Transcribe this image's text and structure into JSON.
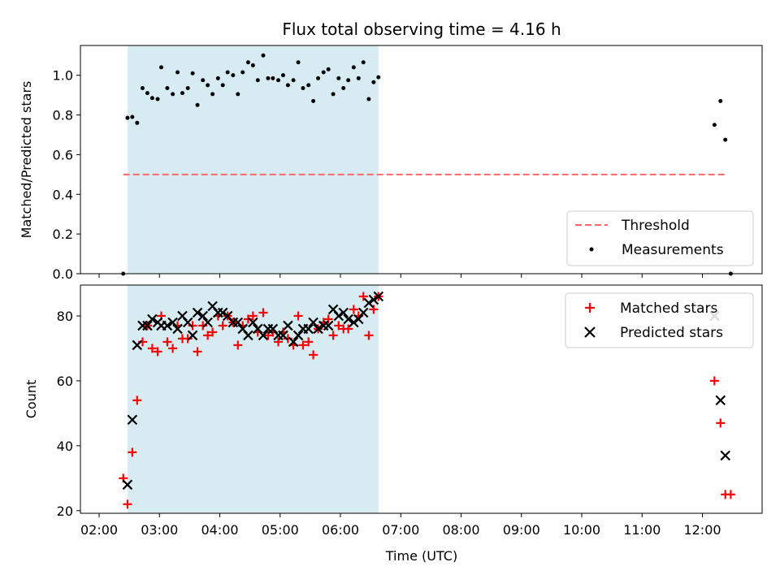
{
  "title": "Flux total observing time = 4.16 h",
  "xlabel": "Time (UTC)",
  "x_ticks": [
    "02:00",
    "03:00",
    "04:00",
    "05:00",
    "06:00",
    "07:00",
    "08:00",
    "09:00",
    "10:00",
    "11:00",
    "12:00"
  ],
  "x_range_hours": [
    1.69,
    12.99
  ],
  "observing_window_hours": [
    2.47,
    6.63
  ],
  "colors": {
    "shade": "#add8e6",
    "threshold": "#ff6666",
    "matched": "#ff0000",
    "predicted": "#000000",
    "measurement": "#000000"
  },
  "chart_data": [
    {
      "type": "scatter",
      "ylabel": "Matched/Predicted stars",
      "ylim": [
        0,
        1.15
      ],
      "y_ticks": [
        "0.0",
        "0.2",
        "0.4",
        "0.6",
        "0.8",
        "1.0"
      ],
      "grid": false,
      "legend_position": "lower-right",
      "legend": [
        "Threshold",
        "Measurements"
      ],
      "threshold": {
        "value": 0.5,
        "x_start": 2.4,
        "x_end": 12.4
      },
      "series": [
        {
          "name": "Measurements",
          "points": [
            [
              2.4,
              0.0
            ],
            [
              2.47,
              0.785
            ],
            [
              2.55,
              0.79
            ],
            [
              2.63,
              0.76
            ],
            [
              2.72,
              0.935
            ],
            [
              2.8,
              0.91
            ],
            [
              2.88,
              0.885
            ],
            [
              2.97,
              0.88
            ],
            [
              3.03,
              1.04
            ],
            [
              3.13,
              0.935
            ],
            [
              3.22,
              0.905
            ],
            [
              3.3,
              1.015
            ],
            [
              3.38,
              0.91
            ],
            [
              3.47,
              0.935
            ],
            [
              3.55,
              1.01
            ],
            [
              3.63,
              0.85
            ],
            [
              3.72,
              0.975
            ],
            [
              3.8,
              0.95
            ],
            [
              3.88,
              0.905
            ],
            [
              3.97,
              0.985
            ],
            [
              4.05,
              0.95
            ],
            [
              4.13,
              1.015
            ],
            [
              4.22,
              1.0
            ],
            [
              4.3,
              0.905
            ],
            [
              4.38,
              1.015
            ],
            [
              4.47,
              1.065
            ],
            [
              4.55,
              1.05
            ],
            [
              4.63,
              0.975
            ],
            [
              4.72,
              1.1
            ],
            [
              4.8,
              0.985
            ],
            [
              4.88,
              0.985
            ],
            [
              4.97,
              0.975
            ],
            [
              5.05,
              1.0
            ],
            [
              5.13,
              0.95
            ],
            [
              5.22,
              0.975
            ],
            [
              5.3,
              1.065
            ],
            [
              5.38,
              0.935
            ],
            [
              5.47,
              0.95
            ],
            [
              5.55,
              0.87
            ],
            [
              5.63,
              0.985
            ],
            [
              5.72,
              1.015
            ],
            [
              5.8,
              1.03
            ],
            [
              5.88,
              0.905
            ],
            [
              5.97,
              0.985
            ],
            [
              6.05,
              0.935
            ],
            [
              6.13,
              0.975
            ],
            [
              6.22,
              1.04
            ],
            [
              6.3,
              0.985
            ],
            [
              6.38,
              1.065
            ],
            [
              6.47,
              0.88
            ],
            [
              6.55,
              0.965
            ],
            [
              6.63,
              0.99
            ],
            [
              12.2,
              0.75
            ],
            [
              12.3,
              0.87
            ],
            [
              12.38,
              0.675
            ],
            [
              12.47,
              0.0
            ]
          ]
        }
      ]
    },
    {
      "type": "scatter",
      "ylabel": "Count",
      "ylim": [
        19.2,
        89.5
      ],
      "y_ticks": [
        "20",
        "40",
        "60",
        "80"
      ],
      "grid": false,
      "legend_position": "upper-right",
      "legend": [
        "Matched stars",
        "Predicted stars"
      ],
      "series": [
        {
          "name": "Matched stars",
          "points": [
            [
              2.4,
              30
            ],
            [
              2.47,
              22
            ],
            [
              2.55,
              38
            ],
            [
              2.63,
              54
            ],
            [
              2.72,
              72
            ],
            [
              2.8,
              77
            ],
            [
              2.88,
              70
            ],
            [
              2.97,
              69
            ],
            [
              3.03,
              80
            ],
            [
              3.13,
              72
            ],
            [
              3.22,
              70
            ],
            [
              3.3,
              77
            ],
            [
              3.38,
              73
            ],
            [
              3.47,
              73
            ],
            [
              3.55,
              77
            ],
            [
              3.63,
              69
            ],
            [
              3.72,
              77
            ],
            [
              3.8,
              74
            ],
            [
              3.88,
              75
            ],
            [
              3.97,
              80
            ],
            [
              4.05,
              77
            ],
            [
              4.13,
              80
            ],
            [
              4.22,
              78
            ],
            [
              4.3,
              71
            ],
            [
              4.38,
              77
            ],
            [
              4.47,
              79
            ],
            [
              4.55,
              80
            ],
            [
              4.63,
              75
            ],
            [
              4.72,
              81
            ],
            [
              4.8,
              74
            ],
            [
              4.88,
              75
            ],
            [
              4.97,
              72
            ],
            [
              5.05,
              75
            ],
            [
              5.13,
              73
            ],
            [
              5.22,
              71
            ],
            [
              5.3,
              80
            ],
            [
              5.38,
              71
            ],
            [
              5.47,
              72
            ],
            [
              5.55,
              68
            ],
            [
              5.63,
              76
            ],
            [
              5.72,
              78
            ],
            [
              5.8,
              79
            ],
            [
              5.88,
              74
            ],
            [
              5.97,
              77
            ],
            [
              6.05,
              76
            ],
            [
              6.13,
              76
            ],
            [
              6.22,
              82
            ],
            [
              6.3,
              80
            ],
            [
              6.38,
              86
            ],
            [
              6.47,
              74
            ],
            [
              6.55,
              82
            ],
            [
              6.63,
              86
            ],
            [
              12.2,
              60
            ],
            [
              12.3,
              47
            ],
            [
              12.38,
              25
            ],
            [
              12.47,
              25
            ]
          ]
        },
        {
          "name": "Predicted stars",
          "points": [
            [
              2.47,
              28
            ],
            [
              2.55,
              48
            ],
            [
              2.63,
              71
            ],
            [
              2.72,
              77
            ],
            [
              2.8,
              77
            ],
            [
              2.88,
              79
            ],
            [
              2.97,
              78
            ],
            [
              3.03,
              77
            ],
            [
              3.13,
              77
            ],
            [
              3.22,
              78
            ],
            [
              3.3,
              76
            ],
            [
              3.38,
              80
            ],
            [
              3.47,
              78
            ],
            [
              3.55,
              74
            ],
            [
              3.63,
              81
            ],
            [
              3.72,
              80
            ],
            [
              3.8,
              78
            ],
            [
              3.88,
              83
            ],
            [
              3.97,
              81
            ],
            [
              4.05,
              81
            ],
            [
              4.13,
              80
            ],
            [
              4.22,
              78
            ],
            [
              4.3,
              78
            ],
            [
              4.38,
              76
            ],
            [
              4.47,
              74
            ],
            [
              4.55,
              78
            ],
            [
              4.63,
              76
            ],
            [
              4.72,
              74
            ],
            [
              4.8,
              76
            ],
            [
              4.88,
              76
            ],
            [
              4.97,
              74
            ],
            [
              5.05,
              74
            ],
            [
              5.13,
              77
            ],
            [
              5.22,
              72
            ],
            [
              5.3,
              74
            ],
            [
              5.38,
              76
            ],
            [
              5.47,
              76
            ],
            [
              5.55,
              78
            ],
            [
              5.63,
              76
            ],
            [
              5.72,
              77
            ],
            [
              5.8,
              77
            ],
            [
              5.88,
              82
            ],
            [
              5.97,
              80
            ],
            [
              6.05,
              81
            ],
            [
              6.13,
              79
            ],
            [
              6.22,
              78
            ],
            [
              6.3,
              79
            ],
            [
              6.38,
              81
            ],
            [
              6.47,
              84
            ],
            [
              6.55,
              85
            ],
            [
              6.63,
              86
            ],
            [
              12.2,
              80
            ],
            [
              12.3,
              54
            ],
            [
              12.38,
              37
            ]
          ]
        }
      ]
    }
  ]
}
